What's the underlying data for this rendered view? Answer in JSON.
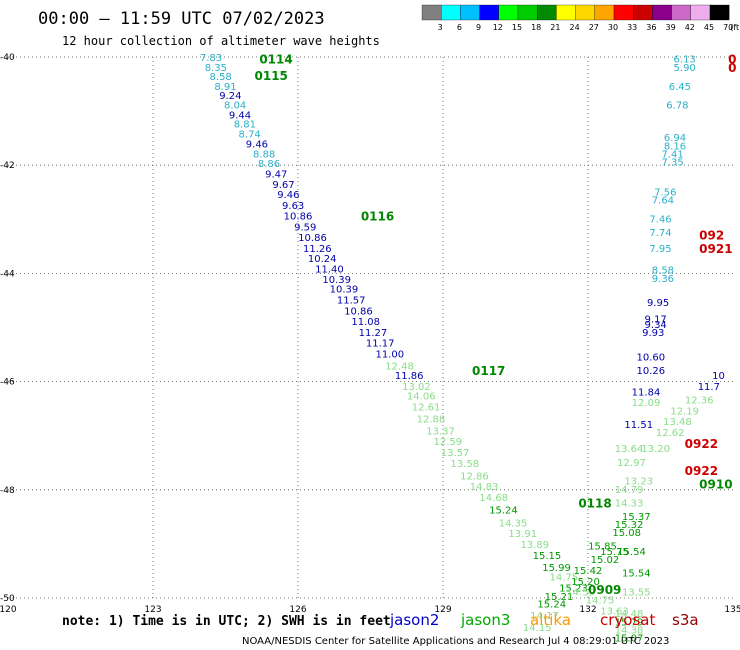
{
  "header": {
    "title": "00:00 – 11:59 UTC 07/02/2023",
    "subtitle": "12 hour collection of altimeter wave heights"
  },
  "colorbar": {
    "labels": [
      "3",
      "6",
      "9",
      "12",
      "15",
      "18",
      "21",
      "24",
      "27",
      "30",
      "33",
      "36",
      "39",
      "42",
      "45",
      "70"
    ],
    "unit": "(ft)",
    "colors": [
      "#808080",
      "#00ffff",
      "#00bfff",
      "#0000ff",
      "#00ff00",
      "#00cd00",
      "#008b00",
      "#ffff00",
      "#ffd700",
      "#ffa500",
      "#ff0000",
      "#cd0000",
      "#8b008b",
      "#cd69c9",
      "#eeaeee",
      "#000000"
    ]
  },
  "footer": {
    "note": "note:  1) Time is in UTC;  2) SWH is in feet",
    "satellites": [
      {
        "name": "jason2",
        "color": "#0000cc"
      },
      {
        "name": "jason3",
        "color": "#00aa00"
      },
      {
        "name": "altika",
        "color": "#ff9900"
      },
      {
        "name": "cryosat",
        "color": "#cc0000"
      },
      {
        "name": "s3a",
        "color": "#990000"
      }
    ],
    "credit": "NOAA/NESDIS Center for Satellite Applications and Research     Jul  4 08:29:01 UTC 2023"
  },
  "chart_data": {
    "type": "scatter",
    "title": "00:00 – 11:59 UTC 07/02/2023",
    "subtitle": "12 hour collection of altimeter wave heights",
    "xlim": [
      120,
      135
    ],
    "ylim": [
      -50,
      -40
    ],
    "xticks": [
      "120",
      "123",
      "126",
      "129",
      "132",
      "135"
    ],
    "yticks": [
      "-40",
      "-42",
      "-44",
      "-46",
      "-48",
      "-50"
    ],
    "grid": true,
    "unit": "ft",
    "time_labels": [
      {
        "text": "0114",
        "x": 125.2,
        "y": -40.05,
        "color": "#008800"
      },
      {
        "text": "0115",
        "x": 125.1,
        "y": -40.35,
        "color": "#008800"
      },
      {
        "text": "0116",
        "x": 127.3,
        "y": -42.95,
        "color": "#008800"
      },
      {
        "text": "0117",
        "x": 129.6,
        "y": -45.8,
        "color": "#008800"
      },
      {
        "text": "0118",
        "x": 131.8,
        "y": -48.25,
        "color": "#008800"
      },
      {
        "text": "0909",
        "x": 132.0,
        "y": -49.85,
        "color": "#008800"
      },
      {
        "text": "0910",
        "x": 134.3,
        "y": -47.9,
        "color": "#008800"
      },
      {
        "text": "0922",
        "x": 134.0,
        "y": -47.15,
        "color": "#cc0000"
      },
      {
        "text": "0922",
        "x": 134.0,
        "y": -47.65,
        "color": "#cc0000"
      },
      {
        "text": "092",
        "x": 134.3,
        "y": -43.3,
        "color": "#cc0000"
      },
      {
        "text": "0921",
        "x": 134.3,
        "y": -43.55,
        "color": "#cc0000"
      },
      {
        "text": "0",
        "x": 134.9,
        "y": -40.05,
        "color": "#cc0000"
      },
      {
        "text": "0",
        "x": 134.9,
        "y": -40.2,
        "color": "#cc0000"
      }
    ],
    "points": [
      {
        "x": 124.2,
        "y": -40.02,
        "v": "7.83",
        "c": "#2ab0c8"
      },
      {
        "x": 124.3,
        "y": -40.2,
        "v": "8.35",
        "c": "#2ab0c8"
      },
      {
        "x": 124.4,
        "y": -40.37,
        "v": "8.58",
        "c": "#2ab0c8"
      },
      {
        "x": 124.5,
        "y": -40.55,
        "v": "8.91",
        "c": "#2ab0c8"
      },
      {
        "x": 124.6,
        "y": -40.72,
        "v": "9.24",
        "c": "#0000aa"
      },
      {
        "x": 124.7,
        "y": -40.9,
        "v": "8.04",
        "c": "#2ab0c8"
      },
      {
        "x": 124.8,
        "y": -41.08,
        "v": "9.44",
        "c": "#0000aa"
      },
      {
        "x": 124.9,
        "y": -41.25,
        "v": "8.81",
        "c": "#2ab0c8"
      },
      {
        "x": 125.0,
        "y": -41.43,
        "v": "8.74",
        "c": "#2ab0c8"
      },
      {
        "x": 125.15,
        "y": -41.62,
        "v": "9.46",
        "c": "#0000aa"
      },
      {
        "x": 125.3,
        "y": -41.8,
        "v": "8.88",
        "c": "#2ab0c8"
      },
      {
        "x": 125.4,
        "y": -41.98,
        "v": "8.86",
        "c": "#2ab0c8"
      },
      {
        "x": 125.55,
        "y": -42.17,
        "v": "9.47",
        "c": "#0000aa"
      },
      {
        "x": 125.7,
        "y": -42.37,
        "v": "9.67",
        "c": "#0000aa"
      },
      {
        "x": 125.8,
        "y": -42.55,
        "v": "9.46",
        "c": "#0000aa"
      },
      {
        "x": 125.9,
        "y": -42.75,
        "v": "9.63",
        "c": "#0000aa"
      },
      {
        "x": 126.0,
        "y": -42.95,
        "v": "10.86",
        "c": "#0000aa"
      },
      {
        "x": 126.15,
        "y": -43.15,
        "v": "9.59",
        "c": "#0000aa"
      },
      {
        "x": 126.3,
        "y": -43.35,
        "v": "10.86",
        "c": "#0000aa"
      },
      {
        "x": 126.4,
        "y": -43.55,
        "v": "11.26",
        "c": "#0000aa"
      },
      {
        "x": 126.5,
        "y": -43.73,
        "v": "10.24",
        "c": "#0000aa"
      },
      {
        "x": 126.65,
        "y": -43.93,
        "v": "11.40",
        "c": "#0000aa"
      },
      {
        "x": 126.8,
        "y": -44.12,
        "v": "10.39",
        "c": "#0000aa"
      },
      {
        "x": 126.95,
        "y": -44.3,
        "v": "10.39",
        "c": "#0000aa"
      },
      {
        "x": 127.1,
        "y": -44.5,
        "v": "11.57",
        "c": "#0000aa"
      },
      {
        "x": 127.25,
        "y": -44.7,
        "v": "10.86",
        "c": "#0000aa"
      },
      {
        "x": 127.4,
        "y": -44.9,
        "v": "11.08",
        "c": "#0000aa"
      },
      {
        "x": 127.55,
        "y": -45.1,
        "v": "11.27",
        "c": "#0000aa"
      },
      {
        "x": 127.7,
        "y": -45.3,
        "v": "11.17",
        "c": "#0000aa"
      },
      {
        "x": 127.9,
        "y": -45.5,
        "v": "11.00",
        "c": "#0000aa"
      },
      {
        "x": 128.1,
        "y": -45.72,
        "v": "12.48",
        "c": "#88dd88"
      },
      {
        "x": 128.3,
        "y": -45.9,
        "v": "11.86",
        "c": "#0000aa"
      },
      {
        "x": 128.45,
        "y": -46.1,
        "v": "13.02",
        "c": "#88dd88"
      },
      {
        "x": 128.55,
        "y": -46.28,
        "v": "14.06",
        "c": "#88dd88"
      },
      {
        "x": 128.65,
        "y": -46.48,
        "v": "12.61",
        "c": "#88dd88"
      },
      {
        "x": 128.75,
        "y": -46.7,
        "v": "12.88",
        "c": "#88dd88"
      },
      {
        "x": 128.95,
        "y": -46.92,
        "v": "13.37",
        "c": "#88dd88"
      },
      {
        "x": 129.1,
        "y": -47.12,
        "v": "12.59",
        "c": "#88dd88"
      },
      {
        "x": 129.25,
        "y": -47.32,
        "v": "13.57",
        "c": "#88dd88"
      },
      {
        "x": 129.45,
        "y": -47.52,
        "v": "13.58",
        "c": "#88dd88"
      },
      {
        "x": 129.65,
        "y": -47.75,
        "v": "12.86",
        "c": "#88dd88"
      },
      {
        "x": 129.85,
        "y": -47.95,
        "v": "14.83",
        "c": "#88dd88"
      },
      {
        "x": 130.05,
        "y": -48.15,
        "v": "14.68",
        "c": "#88dd88"
      },
      {
        "x": 130.25,
        "y": -48.38,
        "v": "15.24",
        "c": "#009900"
      },
      {
        "x": 130.45,
        "y": -48.62,
        "v": "14.35",
        "c": "#88dd88"
      },
      {
        "x": 130.65,
        "y": -48.82,
        "v": "13.91",
        "c": "#88dd88"
      },
      {
        "x": 130.9,
        "y": -49.02,
        "v": "13.89",
        "c": "#88dd88"
      },
      {
        "x": 131.15,
        "y": -49.22,
        "v": "15.15",
        "c": "#009900"
      },
      {
        "x": 131.35,
        "y": -49.45,
        "v": "15.99",
        "c": "#009900"
      },
      {
        "x": 131.5,
        "y": -49.62,
        "v": "14.75",
        "c": "#88dd88"
      },
      {
        "x": 131.7,
        "y": -49.82,
        "v": "15.23",
        "c": "#009900"
      },
      {
        "x": 131.4,
        "y": -49.98,
        "v": "15.21",
        "c": "#009900"
      },
      {
        "x": 131.25,
        "y": -50.12,
        "v": "15.24",
        "c": "#009900"
      },
      {
        "x": 131.1,
        "y": -50.33,
        "v": "14.17",
        "c": "#88dd88"
      },
      {
        "x": 130.95,
        "y": -50.55,
        "v": "14.15",
        "c": "#88dd88"
      },
      {
        "x": 132.3,
        "y": -49.05,
        "v": "15.85",
        "c": "#009900"
      },
      {
        "x": 132.55,
        "y": -49.15,
        "v": "15.75",
        "c": "#009900"
      },
      {
        "x": 132.35,
        "y": -49.3,
        "v": "15.02",
        "c": "#009900"
      },
      {
        "x": 132.0,
        "y": -49.5,
        "v": "15.42",
        "c": "#009900"
      },
      {
        "x": 131.95,
        "y": -49.7,
        "v": "15.20",
        "c": "#009900"
      },
      {
        "x": 131.85,
        "y": -49.9,
        "v": "14.59",
        "c": "#88dd88"
      },
      {
        "x": 132.25,
        "y": -50.05,
        "v": "14.75",
        "c": "#88dd88"
      },
      {
        "x": 132.55,
        "y": -50.25,
        "v": "13.63",
        "c": "#88dd88"
      },
      {
        "x": 133.0,
        "y": -49.55,
        "v": "15.54",
        "c": "#009900"
      },
      {
        "x": 133.0,
        "y": -49.9,
        "v": "13.55",
        "c": "#88dd88"
      },
      {
        "x": 132.85,
        "y": -50.3,
        "v": "14.48",
        "c": "#88dd88"
      },
      {
        "x": 132.85,
        "y": -50.45,
        "v": "15.79",
        "c": "#009900"
      },
      {
        "x": 132.85,
        "y": -50.6,
        "v": "14.38",
        "c": "#88dd88"
      },
      {
        "x": 132.85,
        "y": -50.75,
        "v": "15.07",
        "c": "#009900"
      },
      {
        "x": 132.85,
        "y": -48.65,
        "v": "15.32",
        "c": "#009900"
      },
      {
        "x": 133.0,
        "y": -48.5,
        "v": "15.37",
        "c": "#009900"
      },
      {
        "x": 132.8,
        "y": -48.8,
        "v": "15.08",
        "c": "#009900"
      },
      {
        "x": 132.9,
        "y": -49.15,
        "v": "15.54",
        "c": "#009900"
      },
      {
        "x": 132.85,
        "y": -48.25,
        "v": "14.33",
        "c": "#88dd88"
      },
      {
        "x": 132.85,
        "y": -48.0,
        "v": "14.79",
        "c": "#88dd88"
      },
      {
        "x": 133.05,
        "y": -47.85,
        "v": "13.23",
        "c": "#88dd88"
      },
      {
        "x": 132.9,
        "y": -47.5,
        "v": "12.97",
        "c": "#88dd88"
      },
      {
        "x": 132.85,
        "y": -47.25,
        "v": "13.64",
        "c": "#88dd88"
      },
      {
        "x": 133.4,
        "y": -47.25,
        "v": "13.20",
        "c": "#88dd88"
      },
      {
        "x": 133.7,
        "y": -46.95,
        "v": "12.62",
        "c": "#88dd88"
      },
      {
        "x": 133.85,
        "y": -46.75,
        "v": "13.48",
        "c": "#88dd88"
      },
      {
        "x": 134.0,
        "y": -46.55,
        "v": "12.19",
        "c": "#88dd88"
      },
      {
        "x": 134.3,
        "y": -46.35,
        "v": "12.36",
        "c": "#88dd88"
      },
      {
        "x": 134.5,
        "y": -46.1,
        "v": "11.7",
        "c": "#0000aa"
      },
      {
        "x": 134.7,
        "y": -45.9,
        "v": "10",
        "c": "#0000aa"
      },
      {
        "x": 133.05,
        "y": -46.8,
        "v": "11.51",
        "c": "#0000aa"
      },
      {
        "x": 133.2,
        "y": -46.4,
        "v": "12.09",
        "c": "#88dd88"
      },
      {
        "x": 133.2,
        "y": -46.2,
        "v": "11.84",
        "c": "#0000aa"
      },
      {
        "x": 133.3,
        "y": -45.8,
        "v": "10.26",
        "c": "#0000aa"
      },
      {
        "x": 133.3,
        "y": -45.55,
        "v": "10.60",
        "c": "#0000aa"
      },
      {
        "x": 133.35,
        "y": -45.1,
        "v": "9.93",
        "c": "#0000aa"
      },
      {
        "x": 133.4,
        "y": -44.95,
        "v": "9.34",
        "c": "#0000aa"
      },
      {
        "x": 133.4,
        "y": -44.85,
        "v": "9.17",
        "c": "#0000aa"
      },
      {
        "x": 133.45,
        "y": -44.55,
        "v": "9.95",
        "c": "#0000aa"
      },
      {
        "x": 133.55,
        "y": -44.1,
        "v": "9.36",
        "c": "#2ab0c8"
      },
      {
        "x": 133.55,
        "y": -43.95,
        "v": "8.58",
        "c": "#2ab0c8"
      },
      {
        "x": 133.5,
        "y": -43.55,
        "v": "7.95",
        "c": "#2ab0c8"
      },
      {
        "x": 133.5,
        "y": -43.25,
        "v": "7.74",
        "c": "#2ab0c8"
      },
      {
        "x": 133.5,
        "y": -43.0,
        "v": "7.46",
        "c": "#2ab0c8"
      },
      {
        "x": 133.55,
        "y": -42.65,
        "v": "7.64",
        "c": "#2ab0c8"
      },
      {
        "x": 133.6,
        "y": -42.5,
        "v": "7.56",
        "c": "#2ab0c8"
      },
      {
        "x": 133.75,
        "y": -41.95,
        "v": "7.35",
        "c": "#2ab0c8"
      },
      {
        "x": 133.75,
        "y": -41.8,
        "v": "7.41",
        "c": "#2ab0c8"
      },
      {
        "x": 133.8,
        "y": -41.65,
        "v": "8.16",
        "c": "#2ab0c8"
      },
      {
        "x": 133.8,
        "y": -41.5,
        "v": "6.94",
        "c": "#2ab0c8"
      },
      {
        "x": 133.85,
        "y": -40.9,
        "v": "6.78",
        "c": "#2ab0c8"
      },
      {
        "x": 133.9,
        "y": -40.55,
        "v": "6.45",
        "c": "#2ab0c8"
      },
      {
        "x": 134.0,
        "y": -40.2,
        "v": "5.90",
        "c": "#2ab0c8"
      },
      {
        "x": 134.0,
        "y": -40.05,
        "v": "6.13",
        "c": "#2ab0c8"
      }
    ]
  }
}
